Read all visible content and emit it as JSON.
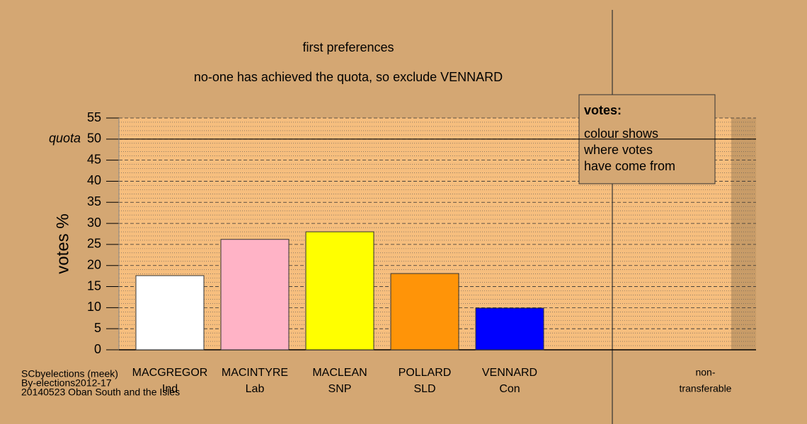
{
  "chart_data": {
    "type": "bar",
    "title": "first preferences",
    "subtitle": "no-one has achieved the quota, so exclude VENNARD",
    "y_label": "votes %",
    "categories": [
      "MACGREGOR",
      "MACINTYRE",
      "MACLEAN",
      "POLLARD",
      "VENNARD",
      "non-"
    ],
    "parties": [
      "Ind",
      "Lab",
      "SNP",
      "SLD",
      "Con",
      "transferable"
    ],
    "values": [
      17.6,
      26.2,
      28.0,
      18.1,
      9.9,
      null
    ],
    "colors": [
      "#ffffff",
      "#ffb3c6",
      "#ffff00",
      "#ff9408",
      "#0000ff",
      null
    ],
    "ylim": [
      0,
      55
    ],
    "yticks": [
      0,
      5,
      10,
      15,
      20,
      25,
      30,
      35,
      40,
      45,
      50,
      55
    ],
    "grid": true,
    "quota": {
      "label": "quota",
      "value": 50
    },
    "note": {
      "title": "votes:",
      "lines": [
        "colour shows",
        "where votes",
        "have come from"
      ]
    },
    "footer": [
      "SCbyelections (meek)",
      "By-elections2012-17",
      "20140523 Oban South and the Isles"
    ]
  }
}
